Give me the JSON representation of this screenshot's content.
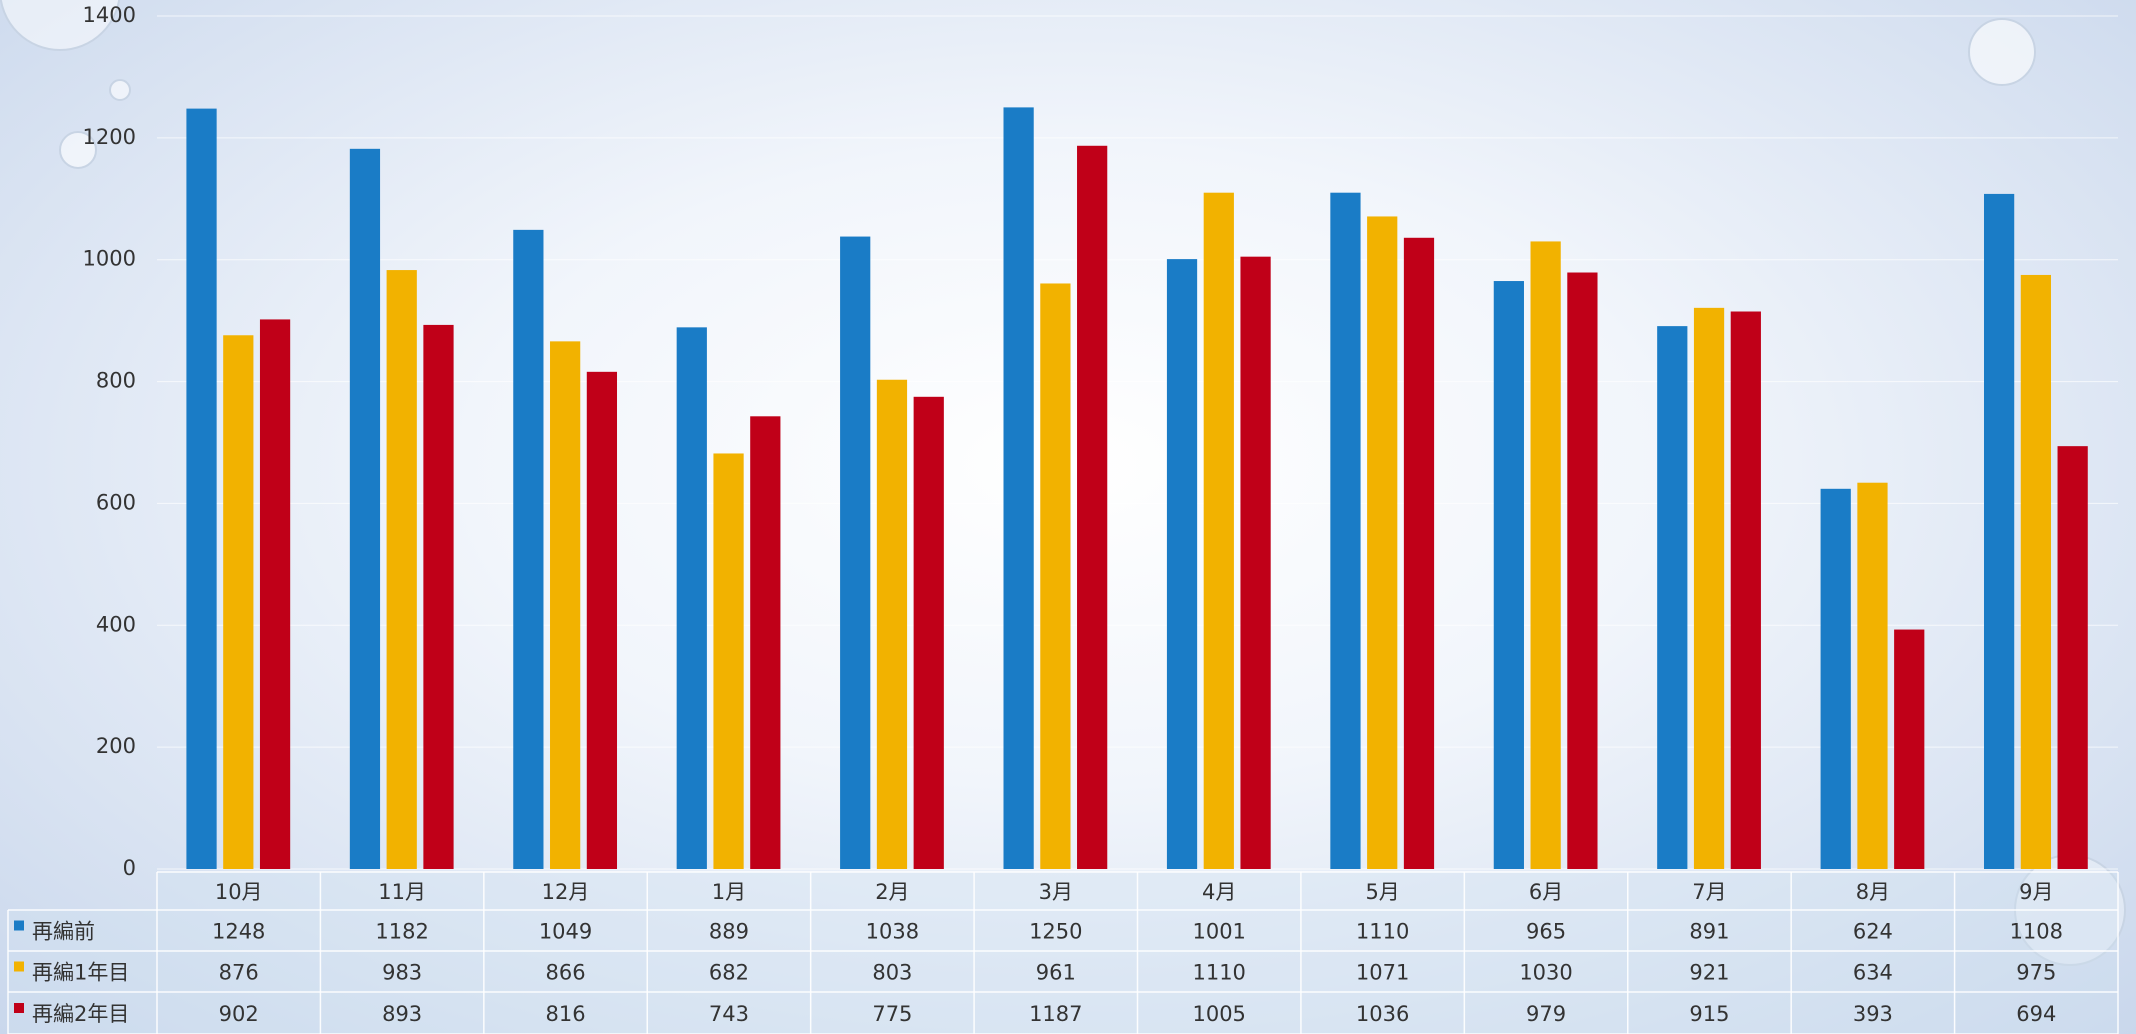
{
  "chart_data": {
    "type": "bar",
    "categories": [
      "10月",
      "11月",
      "12月",
      "1月",
      "2月",
      "3月",
      "4月",
      "5月",
      "6月",
      "7月",
      "8月",
      "9月"
    ],
    "series": [
      {
        "name": "再編前",
        "color": "#1a7cc6",
        "values": [
          1248,
          1182,
          1049,
          889,
          1038,
          1250,
          1001,
          1110,
          965,
          891,
          624,
          1108
        ]
      },
      {
        "name": "再編1年目",
        "color": "#f2b200",
        "values": [
          876,
          983,
          866,
          682,
          803,
          961,
          1110,
          1071,
          1030,
          921,
          634,
          975
        ]
      },
      {
        "name": "再編2年目",
        "color": "#c00018",
        "values": [
          902,
          893,
          816,
          743,
          775,
          1187,
          1005,
          1036,
          979,
          915,
          393,
          694
        ]
      }
    ],
    "ylim": [
      0,
      1400
    ],
    "yticks": [
      0,
      200,
      400,
      600,
      800,
      1000,
      1200,
      1400
    ],
    "grid": true,
    "data_table": true
  }
}
